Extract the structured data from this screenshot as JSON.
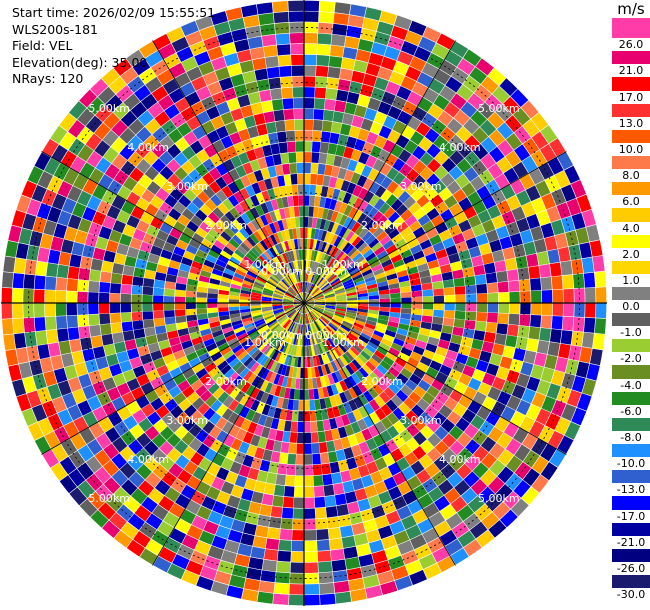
{
  "header": {
    "line1": "Start time: 2026/02/09 15:55:51",
    "line2": "WLS200s-181",
    "line3": "Field: VEL",
    "line4": "Elevation(deg): 35.00",
    "line5": "NRays: 120"
  },
  "colorbar": {
    "unit": "m/s",
    "ticks": [
      "26.0",
      "21.0",
      "17.0",
      "13.0",
      "10.0",
      "8.0",
      "6.0",
      "4.0",
      "2.0",
      "1.0",
      "0.0",
      "-1.0",
      "-2.0",
      "-4.0",
      "-6.0",
      "-8.0",
      "-10.0",
      "-13.0",
      "-17.0",
      "-21.0",
      "-26.0",
      "-30.0"
    ],
    "colors": [
      "#ff3ca8",
      "#e8006e",
      "#ff0000",
      "#ff3030",
      "#ff5a00",
      "#ff7a4a",
      "#ff9900",
      "#ffcc00",
      "#ffff00",
      "#ffd700",
      "#808080",
      "#606060",
      "#9acd32",
      "#6b8e23",
      "#228b22",
      "#2e8b57",
      "#1e90ff",
      "#3060d0",
      "#0000ff",
      "#0000a0",
      "#000080",
      "#1a1a6e"
    ]
  },
  "chart_data": {
    "type": "heatmap",
    "title": "",
    "field": "VEL",
    "elevation_deg": 35.0,
    "nrays": 120,
    "range_unit": "km",
    "max_range_km": 5.5,
    "range_rings_km": [
      1,
      2,
      3,
      4,
      5
    ],
    "range_ring_labels": [
      "1.00km",
      "2.00km",
      "3.00km",
      "4.00km",
      "5.00km"
    ],
    "center_ring_label": "0.00km",
    "vmin": -30.0,
    "vmax": 30.0,
    "sample_values_by_range_km": {
      "0.5": [
        -1.0,
        -2.0,
        0.0,
        4.0,
        2.0
      ],
      "1.0": [
        -6.0,
        2.0,
        6.0,
        -2.0,
        0.0
      ],
      "2.0": [
        26.0,
        -17.0,
        10.0,
        -21.0,
        4.0
      ],
      "3.0": [
        21.0,
        -26.0,
        13.0,
        -13.0,
        8.0
      ],
      "4.0": [
        26.0,
        -30.0,
        17.0,
        -10.0,
        4.0
      ],
      "5.0": [
        21.0,
        -26.0,
        26.0,
        -17.0,
        6.0
      ]
    }
  }
}
